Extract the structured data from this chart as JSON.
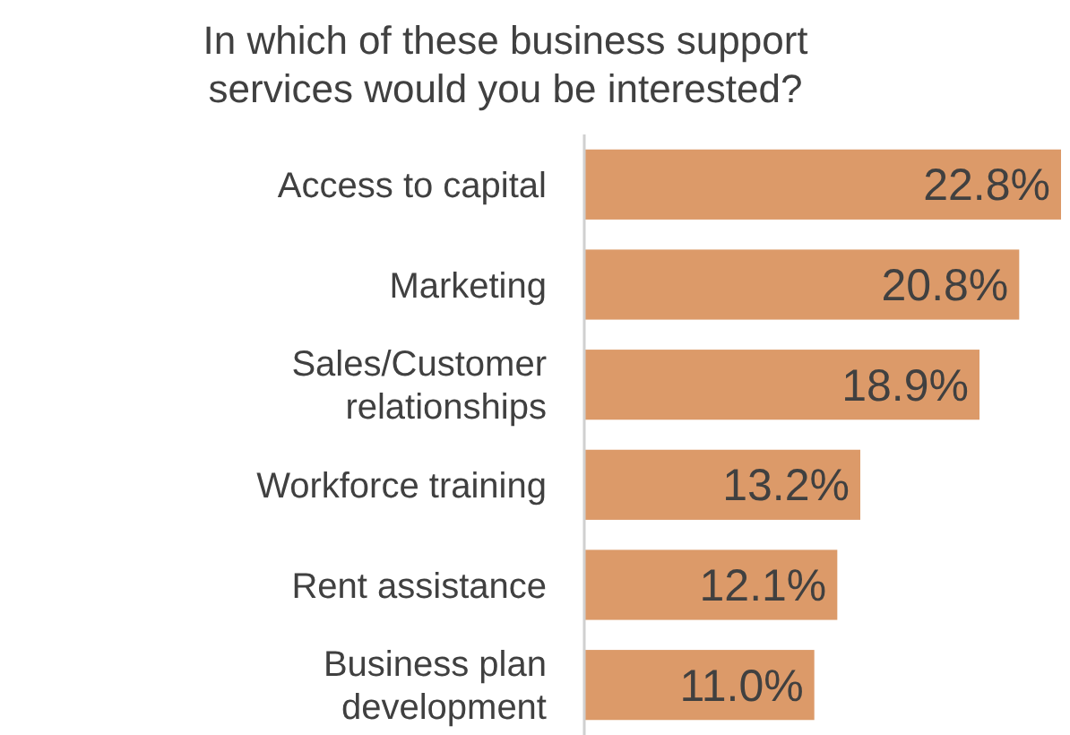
{
  "chart_data": {
    "type": "bar",
    "orientation": "horizontal",
    "title": "In which of these business support services would you be interested?",
    "categories": [
      "Access to capital",
      "Marketing",
      "Sales/Customer relationships",
      "Workforce training",
      "Rent assistance",
      "Business plan development"
    ],
    "values": [
      22.8,
      20.8,
      18.9,
      13.2,
      12.1,
      11.0
    ],
    "value_labels": [
      "22.8%",
      "20.8%",
      "18.9%",
      "13.2%",
      "12.1%",
      "11.0%"
    ],
    "color": "#dc9a69"
  }
}
